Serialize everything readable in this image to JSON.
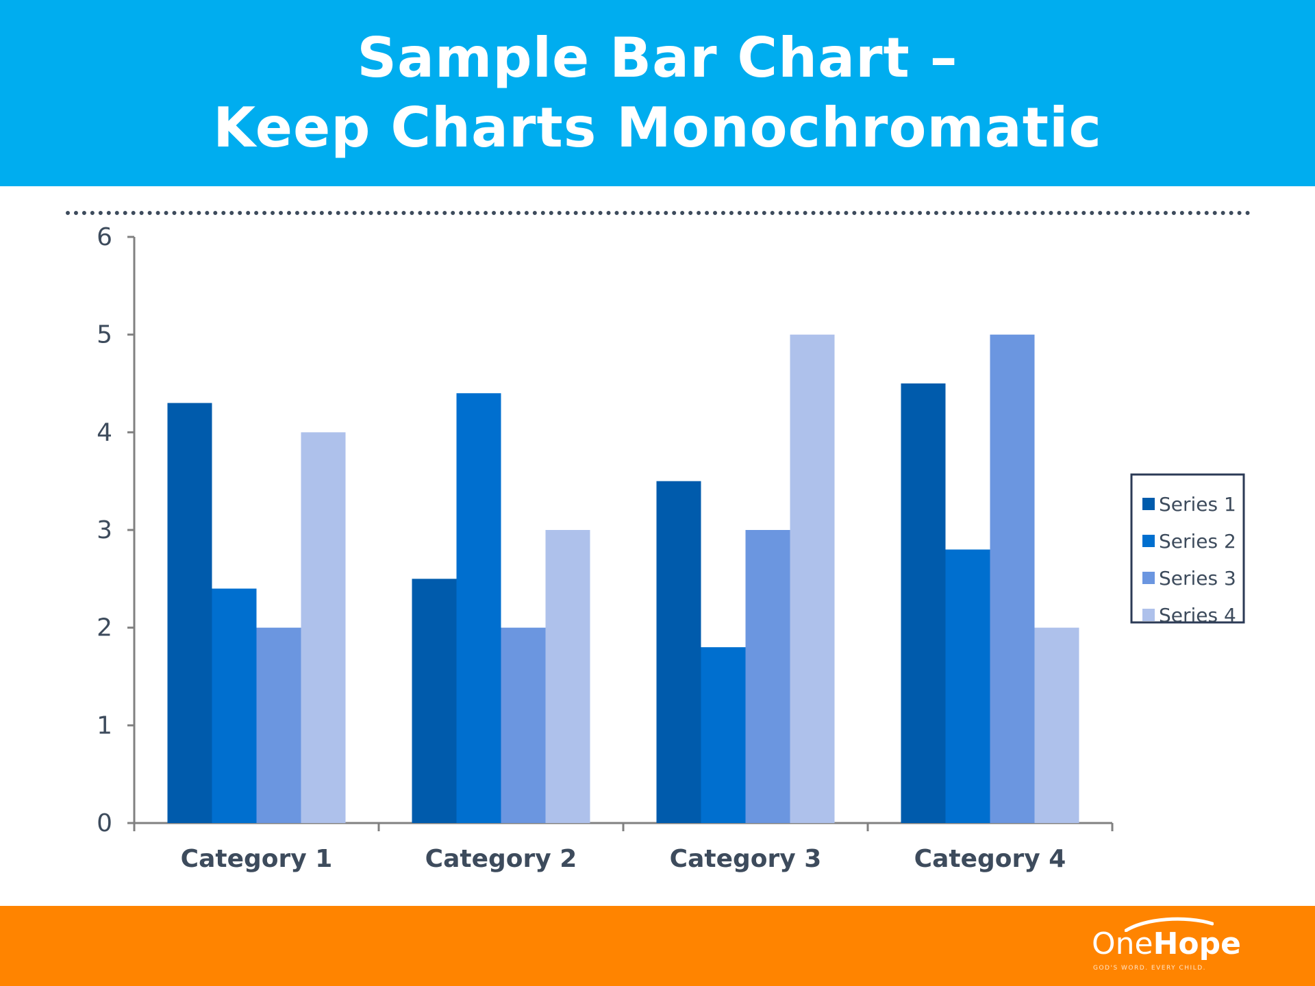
{
  "header": {
    "title_line1": "Sample Bar Chart –",
    "title_line2": "Keep Charts Monochromatic"
  },
  "footer": {
    "logo_one": "One",
    "logo_hope": "Hope",
    "logo_tagline": "GOD'S WORD. EVERY CHILD."
  },
  "colors": {
    "header_bg": "#00adef",
    "footer_bg": "#ff8400",
    "axis": "#808080",
    "text": "#3d4b5c"
  },
  "chart_data": {
    "type": "bar",
    "title": "",
    "xlabel": "",
    "ylabel": "",
    "categories": [
      "Category 1",
      "Category 2",
      "Category 3",
      "Category 4"
    ],
    "ylim": [
      0,
      6
    ],
    "yticks": [
      0,
      1,
      2,
      3,
      4,
      5,
      6
    ],
    "grid": false,
    "legend_position": "right",
    "series": [
      {
        "name": "Series 1",
        "color": "#005bac",
        "values": [
          4.3,
          2.5,
          3.5,
          4.5
        ]
      },
      {
        "name": "Series 2",
        "color": "#006fcf",
        "values": [
          2.4,
          4.4,
          1.8,
          2.8
        ]
      },
      {
        "name": "Series 3",
        "color": "#6b96e0",
        "values": [
          2.0,
          2.0,
          3.0,
          5.0
        ]
      },
      {
        "name": "Series 4",
        "color": "#aec1eb",
        "values": [
          4.0,
          3.0,
          5.0,
          2.0
        ]
      }
    ]
  }
}
